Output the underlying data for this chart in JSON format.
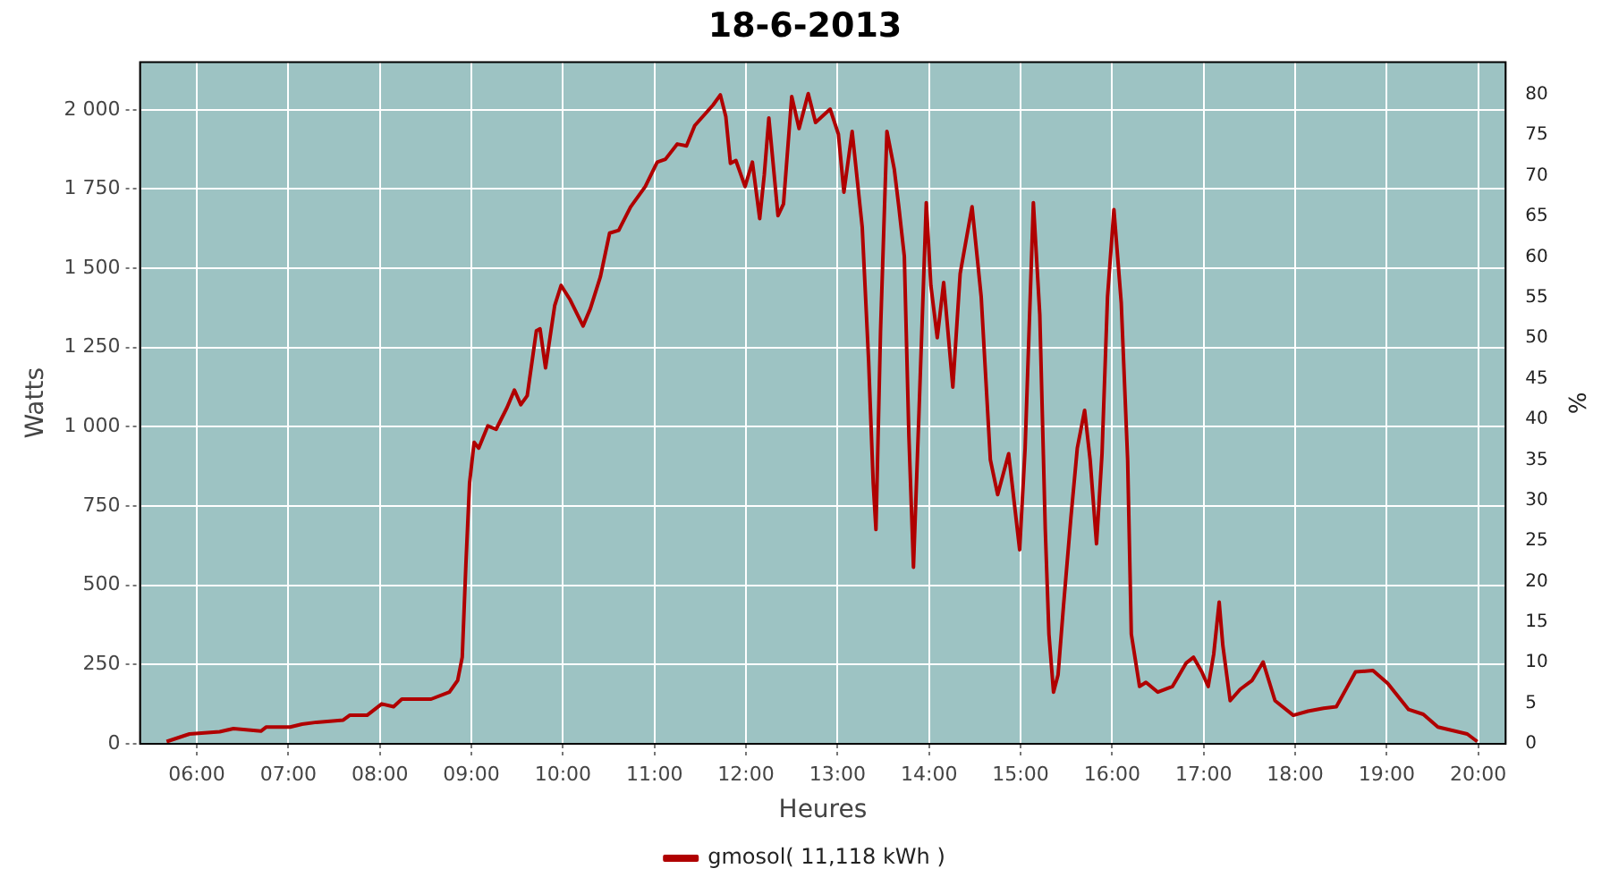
{
  "chart_data": {
    "type": "line",
    "title": "18-6-2013",
    "xlabel": "Heures",
    "ylabel": "Watts",
    "y2label": "%",
    "xlim": [
      5.38,
      20.3
    ],
    "xticks": [
      {
        "value": 6,
        "label": "06:00"
      },
      {
        "value": 7,
        "label": "07:00"
      },
      {
        "value": 8,
        "label": "08:00"
      },
      {
        "value": 9,
        "label": "09:00"
      },
      {
        "value": 10,
        "label": "10:00"
      },
      {
        "value": 11,
        "label": "11:00"
      },
      {
        "value": 12,
        "label": "12:00"
      },
      {
        "value": 13,
        "label": "13:00"
      },
      {
        "value": 14,
        "label": "14:00"
      },
      {
        "value": 15,
        "label": "15:00"
      },
      {
        "value": 16,
        "label": "16:00"
      },
      {
        "value": 17,
        "label": "17:00"
      },
      {
        "value": 18,
        "label": "18:00"
      },
      {
        "value": 19,
        "label": "19:00"
      },
      {
        "value": 20,
        "label": "20:00"
      }
    ],
    "ylim": [
      0,
      2150
    ],
    "yticks": [
      0,
      250,
      500,
      750,
      {
        "value": 1000,
        "label": "1 000"
      },
      {
        "value": 1250,
        "label": "1 250"
      },
      {
        "value": 1500,
        "label": "1 500"
      },
      {
        "value": 1750,
        "label": "1 750"
      },
      {
        "value": 2000,
        "label": "2 000"
      }
    ],
    "y2lim": [
      0,
      84
    ],
    "y2ticks": [
      0,
      5,
      10,
      15,
      20,
      25,
      30,
      35,
      40,
      45,
      50,
      55,
      60,
      65,
      70,
      75,
      80
    ],
    "grid": true,
    "legend": "bottom",
    "marker": "none",
    "line_style": "solid",
    "series": [
      {
        "name": "gmosol( 11,118 kWh )",
        "color": "#b00000",
        "x": [
          5.67,
          5.92,
          6.25,
          6.4,
          6.7,
          6.76,
          7.02,
          7.15,
          7.31,
          7.6,
          7.67,
          7.86,
          8.02,
          8.15,
          8.24,
          8.56,
          8.76,
          8.85,
          8.9,
          8.94,
          8.98,
          9.03,
          9.08,
          9.18,
          9.27,
          9.39,
          9.47,
          9.54,
          9.61,
          9.71,
          9.75,
          9.81,
          9.91,
          9.98,
          10.08,
          10.22,
          10.3,
          10.41,
          10.51,
          10.61,
          10.74,
          10.9,
          11.03,
          11.12,
          11.25,
          11.35,
          11.44,
          11.64,
          11.72,
          11.78,
          11.83,
          11.89,
          11.99,
          12.07,
          12.15,
          12.2,
          12.25,
          12.35,
          12.41,
          12.5,
          12.58,
          12.68,
          12.76,
          12.92,
          13.01,
          13.07,
          13.16,
          13.27,
          13.34,
          13.39,
          13.42,
          13.47,
          13.54,
          13.62,
          13.67,
          13.73,
          13.78,
          13.83,
          13.89,
          13.97,
          14.02,
          14.09,
          14.16,
          14.26,
          14.34,
          14.47,
          14.57,
          14.67,
          14.75,
          14.87,
          14.99,
          15.05,
          15.14,
          15.21,
          15.27,
          15.31,
          15.36,
          15.41,
          15.47,
          15.55,
          15.62,
          15.7,
          15.76,
          15.83,
          15.89,
          15.95,
          16.02,
          16.1,
          16.17,
          16.21,
          16.3,
          16.37,
          16.5,
          16.66,
          16.81,
          16.89,
          16.98,
          17.05,
          17.11,
          17.17,
          17.21,
          17.29,
          17.4,
          17.53,
          17.65,
          17.78,
          17.98,
          18.14,
          18.31,
          18.45,
          18.66,
          18.85,
          19.01,
          19.24,
          19.4,
          19.56,
          19.88,
          19.99
        ],
        "values": [
          7,
          31,
          38,
          48,
          40,
          53,
          53,
          62,
          68,
          75,
          90,
          90,
          126,
          117,
          141,
          141,
          163,
          200,
          273,
          566,
          823,
          951,
          933,
          1003,
          992,
          1061,
          1116,
          1070,
          1098,
          1303,
          1309,
          1186,
          1382,
          1446,
          1400,
          1318,
          1373,
          1474,
          1611,
          1620,
          1694,
          1758,
          1835,
          1844,
          1892,
          1886,
          1950,
          2015,
          2047,
          1978,
          1831,
          1840,
          1758,
          1835,
          1657,
          1795,
          1974,
          1666,
          1703,
          2042,
          1941,
          2051,
          1960,
          2002,
          1923,
          1740,
          1932,
          1630,
          1208,
          823,
          676,
          1300,
          1932,
          1813,
          1694,
          1538,
          970,
          557,
          1043,
          1707,
          1446,
          1281,
          1455,
          1125,
          1483,
          1694,
          1410,
          896,
          786,
          915,
          612,
          933,
          1707,
          1355,
          676,
          346,
          163,
          218,
          438,
          713,
          933,
          1052,
          896,
          631,
          915,
          1410,
          1685,
          1391,
          896,
          346,
          181,
          194,
          163,
          181,
          255,
          273,
          227,
          181,
          282,
          447,
          310,
          136,
          172,
          200,
          258,
          136,
          90,
          103,
          112,
          117,
          227,
          231,
          191,
          108,
          93,
          53,
          31,
          7
        ]
      }
    ]
  }
}
